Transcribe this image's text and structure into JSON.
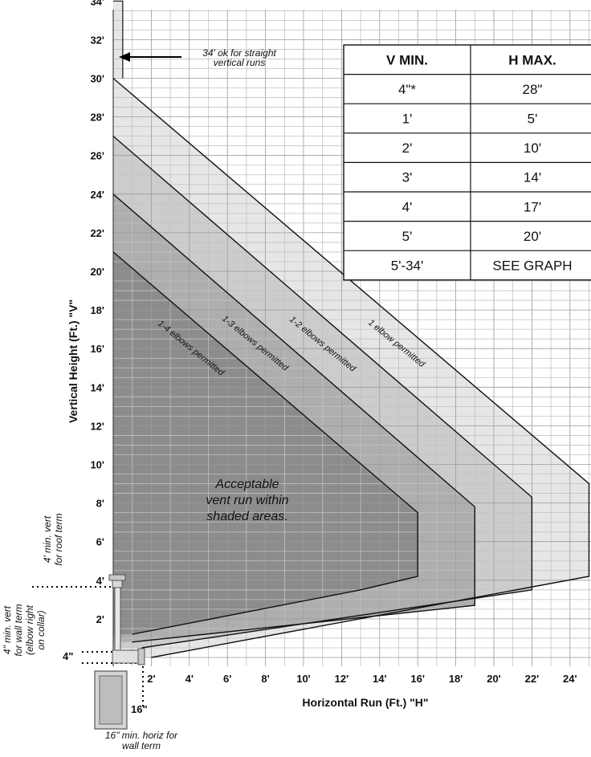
{
  "chart_data": {
    "type": "area",
    "xlabel": "Horizontal Run (Ft.)  \"H\"",
    "ylabel": "Vertical Height (Ft.)  \"V\"",
    "xlim": [
      0,
      25
    ],
    "ylim": [
      0,
      34
    ],
    "grid": true,
    "x_ticks": [
      "2'",
      "4'",
      "6'",
      "8'",
      "10'",
      "12'",
      "14'",
      "16'",
      "18'",
      "20'",
      "22'",
      "24'"
    ],
    "y_ticks": [
      "2'",
      "4'",
      "6'",
      "8'",
      "10'",
      "12'",
      "14'",
      "16'",
      "18'",
      "20'",
      "22'",
      "24'",
      "26'",
      "28'",
      "30'",
      "32'",
      "34'"
    ],
    "series": [
      {
        "name": "1 elbow permitted",
        "color": "#e6e6e6",
        "points": [
          [
            0,
            30
          ],
          [
            25,
            9
          ],
          [
            25,
            4.2
          ],
          [
            2,
            0
          ],
          [
            0,
            0
          ]
        ]
      },
      {
        "name": "1-2 elbows permitted",
        "color": "#cccccc",
        "points": [
          [
            0,
            27
          ],
          [
            22,
            8.3
          ],
          [
            22,
            3.5
          ],
          [
            1.5,
            0.5
          ],
          [
            0,
            0.5
          ]
        ]
      },
      {
        "name": "1-3 elbows permitted",
        "color": "#aeaeae",
        "points": [
          [
            0,
            24
          ],
          [
            19,
            7.8
          ],
          [
            19,
            2.7
          ],
          [
            1,
            0.8
          ],
          [
            0,
            0.8
          ]
        ]
      },
      {
        "name": "1-4 elbows permitted",
        "color": "#8c8c8c",
        "points": [
          [
            0,
            21
          ],
          [
            16,
            7.5
          ],
          [
            16,
            4.2
          ],
          [
            13,
            3.5
          ],
          [
            1,
            1.2
          ],
          [
            0,
            1.2
          ]
        ]
      }
    ],
    "straight_vertical": {
      "x": [
        0,
        0.5
      ],
      "y": [
        30,
        34
      ]
    }
  },
  "annotations": {
    "straight_runs_line1": "34' ok for straight",
    "straight_runs_line2": "vertical runs",
    "acceptable_line1": "Acceptable",
    "acceptable_line2": "vent run within",
    "acceptable_line3": "shaded areas.",
    "roof_term_line1": "4' min. vert",
    "roof_term_line2": "for roof term",
    "wall_term_line1": "4\" min. vert",
    "wall_term_line2": "for wall term",
    "wall_term_line3": "(elbow right",
    "wall_term_line4": "on collar)",
    "horiz_min_line1": "16\" min. horiz for",
    "horiz_min_line2": "wall term",
    "label_4in": "4\"",
    "label_16in": "16\""
  },
  "table": {
    "headers": [
      "V MIN.",
      "H MAX."
    ],
    "rows": [
      [
        "4\"*",
        "28\""
      ],
      [
        "1'",
        "5'"
      ],
      [
        "2'",
        "10'"
      ],
      [
        "3'",
        "14'"
      ],
      [
        "4'",
        "17'"
      ],
      [
        "5'",
        "20'"
      ],
      [
        "5'-34'",
        "SEE GRAPH"
      ]
    ]
  }
}
